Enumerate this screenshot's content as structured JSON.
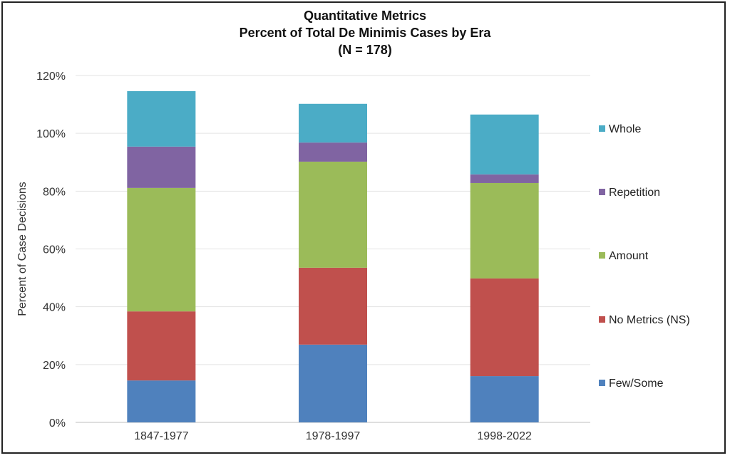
{
  "chart_data": {
    "type": "bar",
    "stacked": true,
    "title": [
      "Quantitative Metrics",
      "Percent of Total De Minimis Cases by Era",
      "(N = 178)"
    ],
    "xlabel": "",
    "ylabel": "Percent of Case Decisions",
    "ylim": [
      0,
      120
    ],
    "yticks": [
      "0%",
      "20%",
      "40%",
      "60%",
      "80%",
      "100%",
      "120%"
    ],
    "grid": true,
    "legend_position": "right",
    "categories": [
      "1847-1977",
      "1978-1997",
      "1998-2022"
    ],
    "series": [
      {
        "name": "Few/Some",
        "color": "#4F81BD",
        "values": [
          14.5,
          26.9,
          16.0
        ]
      },
      {
        "name": "No Metrics (NS)",
        "color": "#C0504D",
        "values": [
          23.9,
          26.6,
          33.8
        ]
      },
      {
        "name": "Amount",
        "color": "#9BBB59",
        "values": [
          42.7,
          36.7,
          33.0
        ]
      },
      {
        "name": "Repetition",
        "color": "#8064A2",
        "values": [
          14.3,
          6.6,
          3.0
        ]
      },
      {
        "name": "Whole",
        "color": "#4BACC6",
        "values": [
          19.2,
          13.4,
          20.7
        ]
      }
    ]
  }
}
